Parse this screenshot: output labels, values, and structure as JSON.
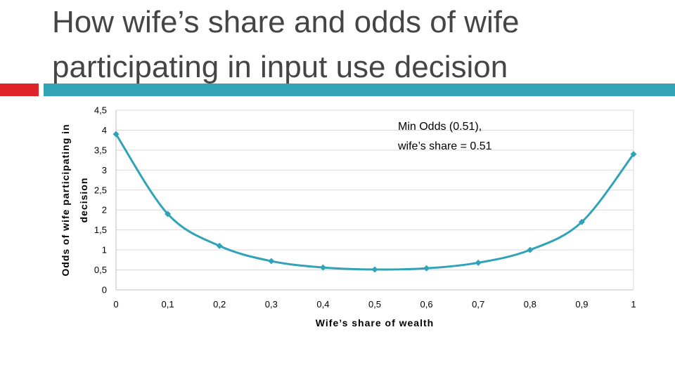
{
  "title": {
    "line1": "How wife’s share and odds of wife",
    "line2": "participating in input use decision"
  },
  "colors": {
    "title_text": "#454545",
    "accent_red": "#e0232a",
    "accent_teal": "#31a3b7",
    "series_line": "#31a3b7",
    "gridline": "#d9d9d9"
  },
  "chart_data": {
    "type": "line",
    "xlabel": "Wife’s share of wealth",
    "ylabel_line1": "Odds of wife participating in",
    "ylabel_line2": "decision",
    "xlim": [
      0,
      1
    ],
    "ylim": [
      0,
      4.5
    ],
    "grid": true,
    "xticks": [
      0,
      0.1,
      0.2,
      0.3,
      0.4,
      0.5,
      0.6,
      0.7,
      0.8,
      0.9,
      1
    ],
    "xtick_labels": [
      "0",
      "0,1",
      "0,2",
      "0,3",
      "0,4",
      "0,5",
      "0,6",
      "0,7",
      "0,8",
      "0,9",
      "1"
    ],
    "yticks": [
      0,
      0.5,
      1,
      1.5,
      2,
      2.5,
      3,
      3.5,
      4,
      4.5
    ],
    "ytick_labels": [
      "0",
      "0,5",
      "1",
      "1,5",
      "2",
      "2,5",
      "3",
      "3,5",
      "4",
      "4,5"
    ],
    "marker": "diamond",
    "series": [
      {
        "x": [
          0,
          0.1,
          0.2,
          0.3,
          0.4,
          0.5,
          0.6,
          0.7,
          0.8,
          0.9,
          1
        ],
        "y": [
          3.9,
          1.9,
          1.1,
          0.72,
          0.56,
          0.51,
          0.54,
          0.68,
          1.0,
          1.7,
          3.4
        ]
      }
    ],
    "annotation": {
      "line1": "Min Odds (0.51),",
      "line2": "wife’s share = 0.51"
    }
  }
}
